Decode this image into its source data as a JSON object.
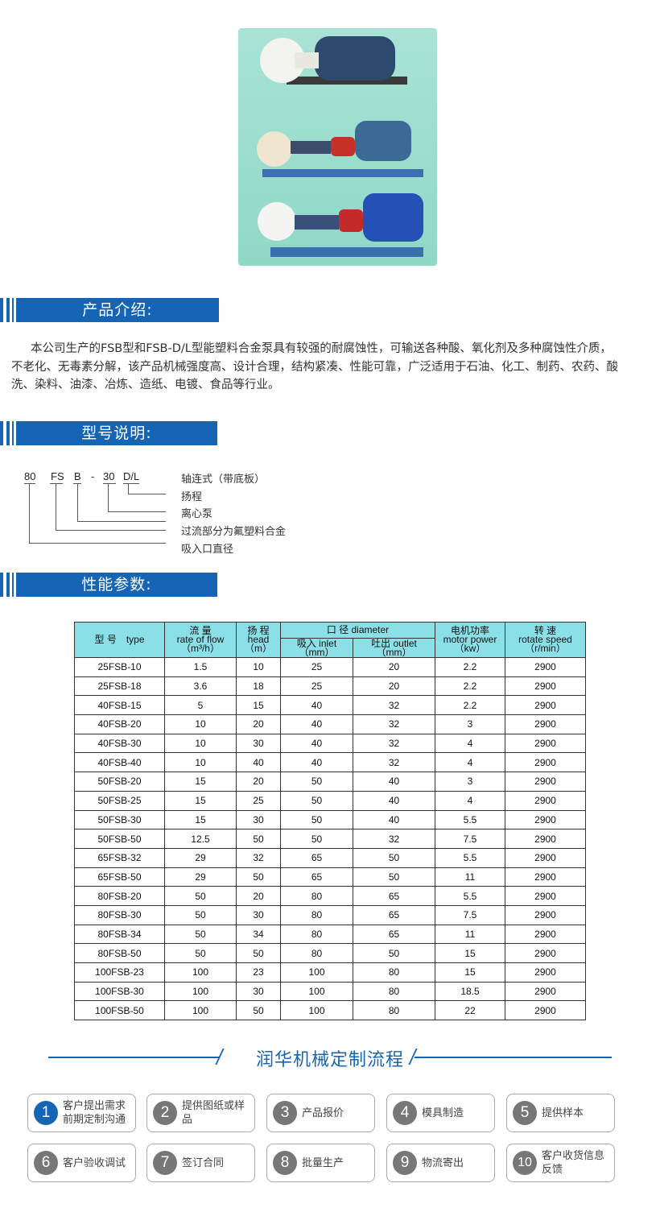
{
  "colors": {
    "accent": "#1565b4",
    "table_header": "#8be0e8",
    "step_inactive": "#777777"
  },
  "sections": {
    "intro": "产品介绍:",
    "model": "型号说明:",
    "performance": "性能参数:"
  },
  "intro_text": "本公司生产的FSB型和FSB-D/L型能塑料合金泵具有较强的耐腐蚀性，可输送各种酸、氧化剂及多种腐蚀性介质，不老化、无毒素分解，该产品机械强度高、设计合理，结构紧凑、性能可靠，广泛适用于石油、化工、制药、农药、酸洗、染料、油漆、冶炼、造纸、电镀、食品等行业。",
  "model_code": [
    "80",
    "FS",
    "B",
    "-",
    "30",
    "D/L"
  ],
  "model_labels": [
    "轴连式（带底板）",
    "扬程",
    "离心泵",
    "过流部分为氟塑料合金",
    "吸入口直径"
  ],
  "table": {
    "headers": {
      "type": "型 号　type",
      "flow_cn": "流 量",
      "flow_en": "rate of flow",
      "flow_unit": "（m³/h）",
      "head_cn": "扬 程",
      "head_en": "head",
      "head_unit": "（m）",
      "diam": "口 径  diameter",
      "inlet": "吸入  inlet",
      "inlet_unit": "（mm）",
      "outlet": "吐出  outlet",
      "outlet_unit": "（mm）",
      "power_cn": "电机功率",
      "power_en": "motor power",
      "power_unit": "（kw）",
      "speed_cn": "转 速",
      "speed_en": "rotate speed",
      "speed_unit": "（r/min）"
    },
    "rows": [
      [
        "25FSB-10",
        "1.5",
        "10",
        "25",
        "20",
        "2.2",
        "2900"
      ],
      [
        "25FSB-18",
        "3.6",
        "18",
        "25",
        "20",
        "2.2",
        "2900"
      ],
      [
        "40FSB-15",
        "5",
        "15",
        "40",
        "32",
        "2.2",
        "2900"
      ],
      [
        "40FSB-20",
        "10",
        "20",
        "40",
        "32",
        "3",
        "2900"
      ],
      [
        "40FSB-30",
        "10",
        "30",
        "40",
        "32",
        "4",
        "2900"
      ],
      [
        "40FSB-40",
        "10",
        "40",
        "40",
        "32",
        "4",
        "2900"
      ],
      [
        "50FSB-20",
        "15",
        "20",
        "50",
        "40",
        "3",
        "2900"
      ],
      [
        "50FSB-25",
        "15",
        "25",
        "50",
        "40",
        "4",
        "2900"
      ],
      [
        "50FSB-30",
        "15",
        "30",
        "50",
        "40",
        "5.5",
        "2900"
      ],
      [
        "50FSB-50",
        "12.5",
        "50",
        "50",
        "32",
        "7.5",
        "2900"
      ],
      [
        "65FSB-32",
        "29",
        "32",
        "65",
        "50",
        "5.5",
        "2900"
      ],
      [
        "65FSB-50",
        "29",
        "50",
        "65",
        "50",
        "11",
        "2900"
      ],
      [
        "80FSB-20",
        "50",
        "20",
        "80",
        "65",
        "5.5",
        "2900"
      ],
      [
        "80FSB-30",
        "50",
        "30",
        "80",
        "65",
        "7.5",
        "2900"
      ],
      [
        "80FSB-34",
        "50",
        "34",
        "80",
        "65",
        "11",
        "2900"
      ],
      [
        "80FSB-50",
        "50",
        "50",
        "80",
        "50",
        "15",
        "2900"
      ],
      [
        "100FSB-23",
        "100",
        "23",
        "100",
        "80",
        "15",
        "2900"
      ],
      [
        "100FSB-30",
        "100",
        "30",
        "100",
        "80",
        "18.5",
        "2900"
      ],
      [
        "100FSB-50",
        "100",
        "50",
        "100",
        "80",
        "22",
        "2900"
      ]
    ]
  },
  "process": {
    "title": "润华机械定制流程",
    "steps": [
      {
        "num": "1",
        "label": "客户提出需求前期定制沟通",
        "active": true
      },
      {
        "num": "2",
        "label": "提供图纸或样品"
      },
      {
        "num": "3",
        "label": "产品报价"
      },
      {
        "num": "4",
        "label": "模具制造"
      },
      {
        "num": "5",
        "label": "提供样本"
      },
      {
        "num": "6",
        "label": "客户验收调试"
      },
      {
        "num": "7",
        "label": "签订合同"
      },
      {
        "num": "8",
        "label": "批量生产"
      },
      {
        "num": "9",
        "label": "物流寄出"
      },
      {
        "num": "10",
        "label": "客户收货信息反馈"
      }
    ]
  }
}
